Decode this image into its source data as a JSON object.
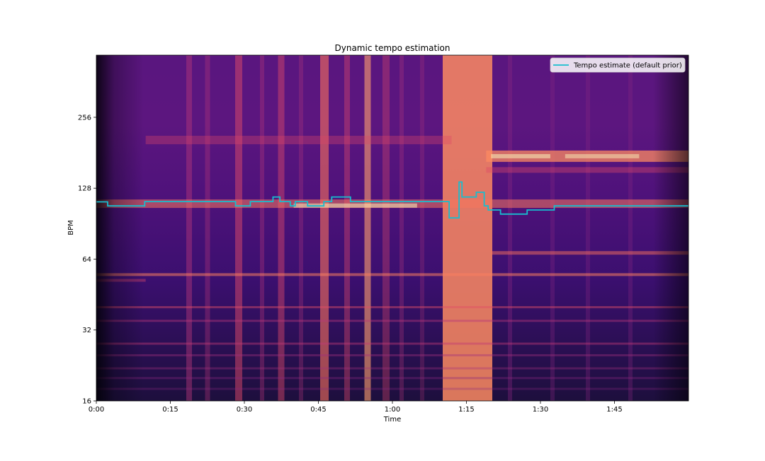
{
  "chart_data": {
    "type": "line",
    "title": "Dynamic tempo estimation",
    "xlabel": "Time",
    "ylabel": "BPM",
    "background": "tempogram heatmap (magma colormap)",
    "x_ticks": [
      "0:00",
      "0:15",
      "0:30",
      "0:45",
      "1:00",
      "1:15",
      "1:30",
      "1:45"
    ],
    "x_tick_seconds": [
      0,
      15,
      30,
      45,
      60,
      75,
      90,
      105
    ],
    "xlim_seconds": [
      0,
      120
    ],
    "y_scale": "log2",
    "y_ticks": [
      "16",
      "32",
      "64",
      "128",
      "256"
    ],
    "y_tick_values": [
      16,
      32,
      64,
      128,
      256
    ],
    "ylim": [
      16,
      470
    ],
    "legend": {
      "placement": "top-right",
      "entries": [
        "Tempo estimate (default prior)"
      ]
    },
    "series": [
      {
        "name": "Tempo estimate (default prior)",
        "color": "#17becf",
        "style": "step",
        "points": [
          [
            0,
            112
          ],
          [
            2.3,
            107.7
          ],
          [
            9.8,
            112.3
          ],
          [
            28.2,
            107.7
          ],
          [
            31.2,
            112.3
          ],
          [
            35.8,
            117.5
          ],
          [
            37.2,
            112.3
          ],
          [
            39.3,
            107.7
          ],
          [
            40.3,
            112.3
          ],
          [
            42.8,
            107.7
          ],
          [
            46.1,
            112.3
          ],
          [
            47.7,
            117.5
          ],
          [
            51.5,
            112.3
          ],
          [
            71.5,
            95.7
          ],
          [
            73.5,
            136
          ],
          [
            74.1,
            117.5
          ],
          [
            77,
            123
          ],
          [
            78.6,
            107.7
          ],
          [
            79.4,
            103.4
          ],
          [
            81.9,
            99.4
          ],
          [
            87.3,
            103.4
          ],
          [
            92.8,
            107.7
          ],
          [
            120,
            107.7
          ]
        ]
      }
    ]
  },
  "colors": {
    "heat_low": "#000004",
    "heat_mid": "#51127c",
    "heat_high": "#fc8961",
    "heat_peak": "#fcfdbf",
    "line": "#17becf"
  }
}
